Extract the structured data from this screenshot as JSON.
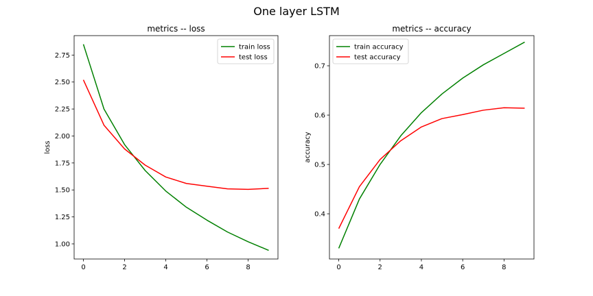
{
  "figure": {
    "title": "One layer LSTM"
  },
  "chart_data": [
    {
      "type": "line",
      "title": "metrics -- loss",
      "xlabel": "",
      "ylabel": "loss",
      "x": [
        0,
        1,
        2,
        3,
        4,
        5,
        6,
        7,
        8,
        9
      ],
      "xlim": [
        -0.45,
        9.45
      ],
      "ylim": [
        0.86,
        2.93
      ],
      "xticks": [
        0,
        2,
        4,
        6,
        8
      ],
      "yticks": [
        1.0,
        1.25,
        1.5,
        1.75,
        2.0,
        2.25,
        2.5,
        2.75
      ],
      "ytick_decimals": 2,
      "legend": "top-right",
      "grid": false,
      "series": [
        {
          "name": "train loss",
          "color": "#008000",
          "values": [
            2.85,
            2.25,
            1.92,
            1.68,
            1.49,
            1.34,
            1.22,
            1.11,
            1.02,
            0.94
          ]
        },
        {
          "name": "test loss",
          "color": "#ff0000",
          "values": [
            2.52,
            2.1,
            1.88,
            1.73,
            1.62,
            1.56,
            1.535,
            1.51,
            1.505,
            1.515
          ]
        }
      ]
    },
    {
      "type": "line",
      "title": "metrics -- accuracy",
      "xlabel": "",
      "ylabel": "accuracy",
      "x": [
        0,
        1,
        2,
        3,
        4,
        5,
        6,
        7,
        8,
        9
      ],
      "xlim": [
        -0.45,
        9.45
      ],
      "ylim": [
        0.3084,
        0.7611
      ],
      "xticks": [
        0,
        2,
        4,
        6,
        8
      ],
      "yticks": [
        0.4,
        0.5,
        0.6,
        0.7
      ],
      "ytick_decimals": 1,
      "legend": "top-left",
      "grid": false,
      "series": [
        {
          "name": "train accuracy",
          "color": "#008000",
          "values": [
            0.33,
            0.43,
            0.5,
            0.558,
            0.605,
            0.643,
            0.675,
            0.702,
            0.725,
            0.748
          ]
        },
        {
          "name": "test accuracy",
          "color": "#ff0000",
          "values": [
            0.37,
            0.455,
            0.51,
            0.548,
            0.576,
            0.593,
            0.601,
            0.61,
            0.615,
            0.614
          ]
        }
      ]
    }
  ]
}
